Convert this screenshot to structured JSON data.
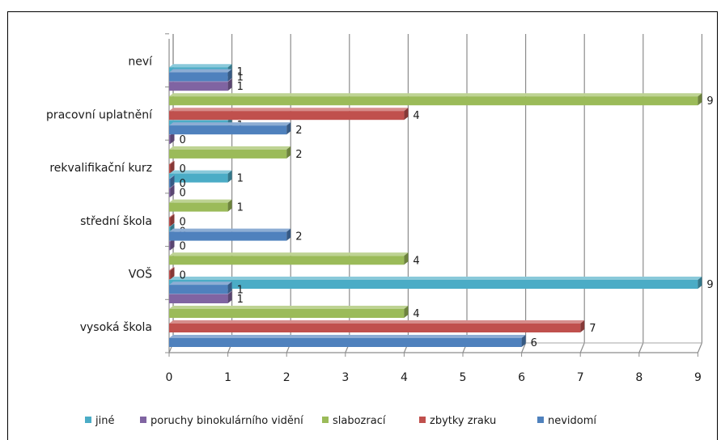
{
  "chart_data": {
    "type": "bar",
    "orientation": "horizontal",
    "categories": [
      "vysoká škola",
      "VOŠ",
      "střední škola",
      "rekvalifikační kurz",
      "pracovní uplatnění",
      "neví"
    ],
    "series": [
      {
        "name": "nevidomí",
        "color": "#4F81BD",
        "values": [
          6,
          1,
          2,
          0,
          2,
          1
        ]
      },
      {
        "name": "zbytky zraku",
        "color": "#C0504D",
        "values": [
          7,
          0,
          0,
          0,
          4,
          null
        ]
      },
      {
        "name": "slabozrací",
        "color": "#9BBB59",
        "values": [
          4,
          4,
          1,
          2,
          9,
          null
        ]
      },
      {
        "name": "poruchy binokulárního vidění",
        "color": "#8064A2",
        "values": [
          1,
          0,
          0,
          0,
          1,
          null
        ]
      },
      {
        "name": "jiné",
        "color": "#4BACC6",
        "values": [
          9,
          0,
          1,
          1,
          1,
          null
        ]
      }
    ],
    "xlim": [
      0,
      9
    ],
    "xticks": [
      "0",
      "1",
      "2",
      "3",
      "4",
      "5",
      "6",
      "7",
      "8",
      "9"
    ],
    "legend_position": "bottom",
    "legend_order": [
      "jiné",
      "poruchy binokulárního vidění",
      "slabozrací",
      "zbytky zraku",
      "nevidomí"
    ],
    "grid": true,
    "style": "3d"
  }
}
